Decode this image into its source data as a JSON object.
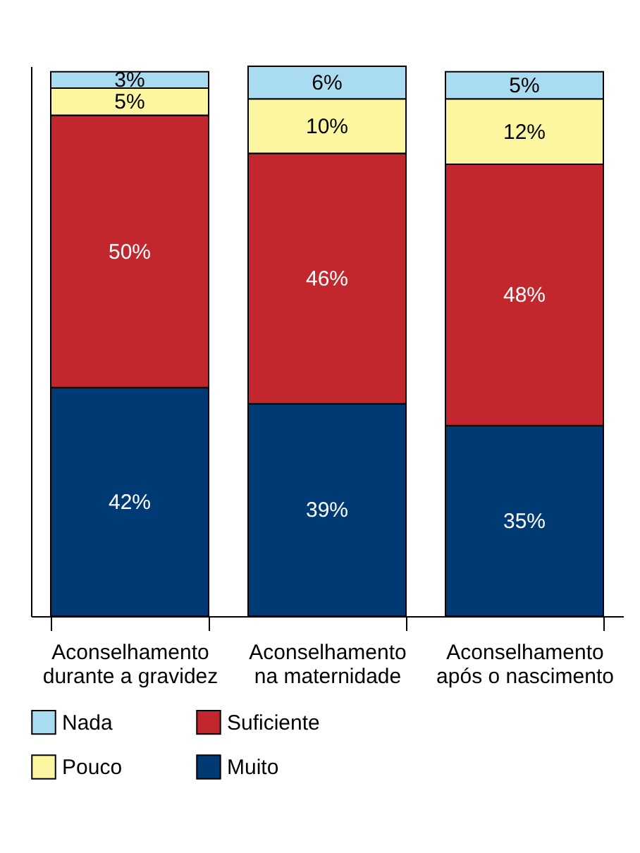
{
  "chart_data": {
    "type": "bar",
    "stacked": true,
    "tick_labels": "x",
    "legend": "bottom",
    "categories": [
      "Aconselhamento durante a gravidez",
      "Aconselhamento na maternidade",
      "Aconselhamento após o nascimento"
    ],
    "series": [
      {
        "name": "Muito",
        "color": "#003a75",
        "values": [
          42,
          39,
          35
        ],
        "value_labels": [
          "42%",
          "39%",
          "35%"
        ]
      },
      {
        "name": "Suficiente",
        "color": "#c1272d",
        "values": [
          50,
          46,
          48
        ],
        "value_labels": [
          "50%",
          "46%",
          "48%"
        ]
      },
      {
        "name": "Pouco",
        "color": "#fdf6a0",
        "values": [
          5,
          10,
          12
        ],
        "value_labels": [
          "5%",
          "10%",
          "12%"
        ]
      },
      {
        "name": "Nada",
        "color": "#a9dcf0",
        "values": [
          3,
          6,
          5
        ],
        "value_labels": [
          "3%",
          "6%",
          "5%"
        ]
      }
    ]
  }
}
